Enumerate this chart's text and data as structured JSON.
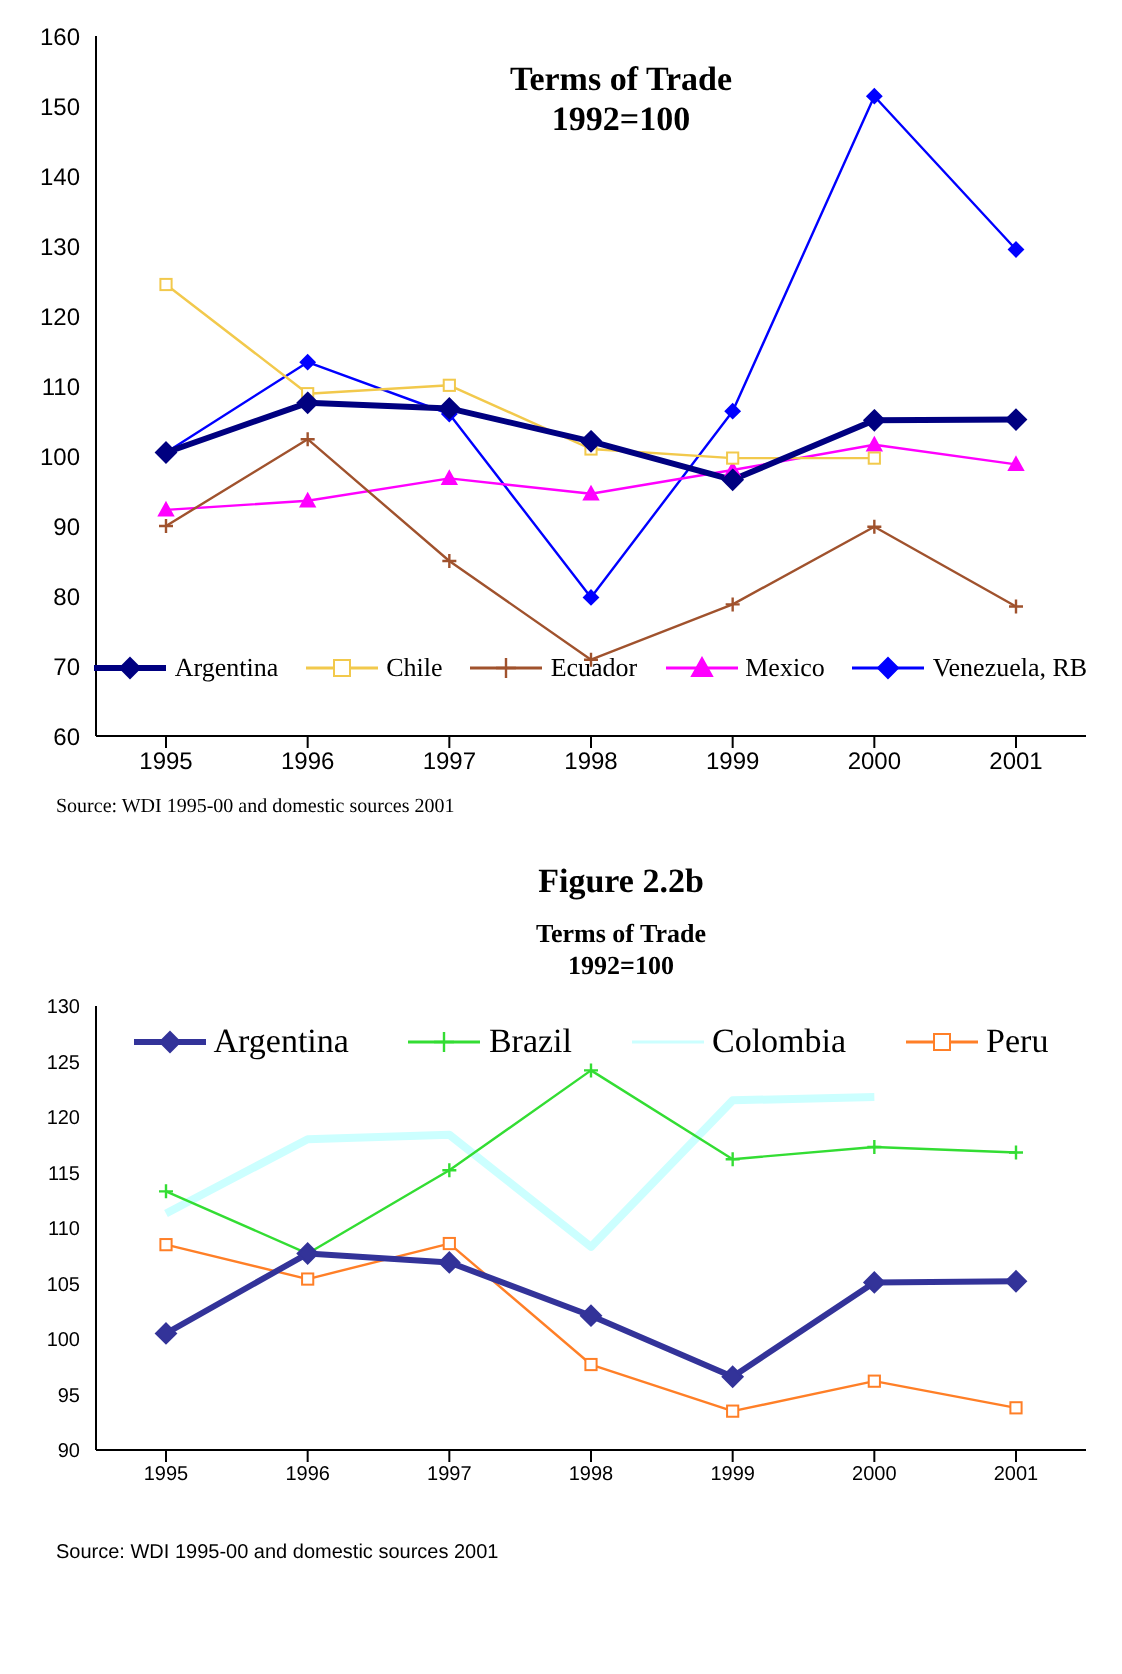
{
  "chart_data": [
    {
      "type": "line",
      "title": "Terms of Trade\n1992=100",
      "categories": [
        "1995",
        "1996",
        "1997",
        "1998",
        "1999",
        "2000",
        "2001"
      ],
      "ylim": [
        60,
        160
      ],
      "yticks": [
        60,
        70,
        80,
        90,
        100,
        110,
        120,
        130,
        140,
        150,
        160
      ],
      "grid": false,
      "legend": "bottom",
      "annotations": [
        "Source: WDI 1995-00 and domestic sources 2001",
        "Figure 2.2b"
      ],
      "series": [
        {
          "name": "Argentina",
          "color": "#000080",
          "marker": "diamond",
          "values": [
            100.5,
            107.6,
            106.8,
            102.1,
            96.6,
            105.1,
            105.2
          ]
        },
        {
          "name": "Chile",
          "color": "#f2c94c",
          "marker": "square",
          "values": [
            124.5,
            108.9,
            110.1,
            101.0,
            99.7,
            99.7,
            null
          ]
        },
        {
          "name": "Ecuador",
          "color": "#a0522d",
          "marker": "cross",
          "values": [
            90.0,
            102.4,
            85.0,
            70.9,
            78.8,
            89.9,
            78.5
          ]
        },
        {
          "name": "Mexico",
          "color": "#ff00ff",
          "marker": "triangle",
          "values": [
            92.3,
            93.6,
            96.8,
            94.6,
            98.0,
            101.6,
            98.8
          ]
        },
        {
          "name": "Venezuela, RB",
          "color": "#0000ff",
          "marker": "diamond",
          "values": [
            100.5,
            113.4,
            106.0,
            79.8,
            106.4,
            151.4,
            129.5
          ]
        }
      ]
    },
    {
      "type": "line",
      "title": "Terms of Trade\n1992=100",
      "categories": [
        "1995",
        "1996",
        "1997",
        "1998",
        "1999",
        "2000",
        "2001"
      ],
      "ylim": [
        90,
        130
      ],
      "yticks": [
        90,
        95,
        100,
        105,
        110,
        115,
        120,
        125,
        130
      ],
      "grid": false,
      "legend": "top",
      "annotations": [
        "Source: WDI 1995-00 and domestic sources 2001"
      ],
      "series": [
        {
          "name": "Argentina",
          "color": "#333399",
          "marker": "diamond",
          "values": [
            100.5,
            107.7,
            106.9,
            102.1,
            96.6,
            105.1,
            105.2
          ]
        },
        {
          "name": "Brazil",
          "color": "#33dd33",
          "marker": "cross",
          "values": [
            113.3,
            107.7,
            115.2,
            124.2,
            116.2,
            117.3,
            116.8
          ]
        },
        {
          "name": "Colombia",
          "color": "#ccffff",
          "marker": "none",
          "values": [
            111.3,
            118.0,
            118.4,
            108.3,
            121.5,
            121.8,
            null
          ]
        },
        {
          "name": "Peru",
          "color": "#ff7f27",
          "marker": "square",
          "values": [
            108.5,
            105.4,
            108.6,
            97.7,
            93.5,
            96.2,
            93.8
          ]
        }
      ]
    }
  ]
}
